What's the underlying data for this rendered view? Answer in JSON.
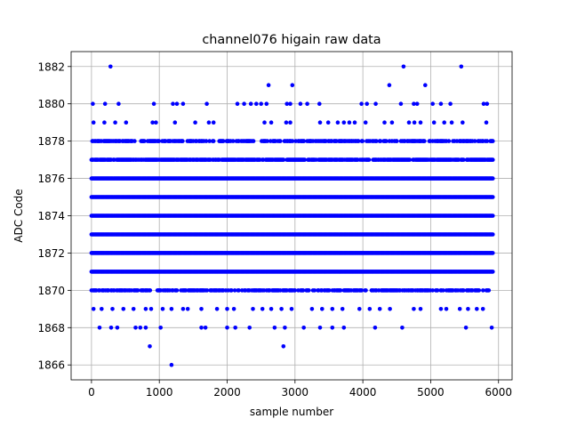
{
  "chart_data": {
    "type": "scatter",
    "title": "channel076 higain raw data",
    "xlabel": "sample number",
    "ylabel": "ADC Code",
    "xlim": [
      -300,
      6200
    ],
    "ylim": [
      1865.2,
      1882.8
    ],
    "x_ticks": [
      0,
      1000,
      2000,
      3000,
      4000,
      5000,
      6000
    ],
    "y_ticks": [
      1866,
      1868,
      1870,
      1872,
      1874,
      1876,
      1878,
      1880,
      1882
    ],
    "grid": true,
    "marker_color": "#0000ff",
    "series": [
      {
        "dense_levels": [
          1871,
          1872,
          1873,
          1874,
          1875,
          1876
        ],
        "dense_x_range": [
          0,
          5920
        ],
        "semi_dense_levels": [
          1870,
          1877,
          1878
        ],
        "sparse_points": [
          {
            "x": 280,
            "y": 1882
          },
          {
            "x": 4600,
            "y": 1882
          },
          {
            "x": 5450,
            "y": 1882
          },
          {
            "x": 2610,
            "y": 1881
          },
          {
            "x": 2960,
            "y": 1881
          },
          {
            "x": 4390,
            "y": 1881
          },
          {
            "x": 4920,
            "y": 1881
          },
          {
            "x": 20,
            "y": 1880
          },
          {
            "x": 200,
            "y": 1880
          },
          {
            "x": 400,
            "y": 1880
          },
          {
            "x": 920,
            "y": 1880
          },
          {
            "x": 1200,
            "y": 1880
          },
          {
            "x": 1260,
            "y": 1880
          },
          {
            "x": 1350,
            "y": 1880
          },
          {
            "x": 1700,
            "y": 1880
          },
          {
            "x": 2150,
            "y": 1880
          },
          {
            "x": 2250,
            "y": 1880
          },
          {
            "x": 2350,
            "y": 1880
          },
          {
            "x": 2430,
            "y": 1880
          },
          {
            "x": 2500,
            "y": 1880
          },
          {
            "x": 2580,
            "y": 1880
          },
          {
            "x": 2880,
            "y": 1880
          },
          {
            "x": 2930,
            "y": 1880
          },
          {
            "x": 3080,
            "y": 1880
          },
          {
            "x": 3180,
            "y": 1880
          },
          {
            "x": 3360,
            "y": 1880
          },
          {
            "x": 3980,
            "y": 1880
          },
          {
            "x": 4060,
            "y": 1880
          },
          {
            "x": 4190,
            "y": 1880
          },
          {
            "x": 4560,
            "y": 1880
          },
          {
            "x": 4750,
            "y": 1880
          },
          {
            "x": 4800,
            "y": 1880
          },
          {
            "x": 5030,
            "y": 1880
          },
          {
            "x": 5150,
            "y": 1880
          },
          {
            "x": 5290,
            "y": 1880
          },
          {
            "x": 5780,
            "y": 1880
          },
          {
            "x": 5830,
            "y": 1880
          },
          {
            "x": 30,
            "y": 1879
          },
          {
            "x": 190,
            "y": 1879
          },
          {
            "x": 350,
            "y": 1879
          },
          {
            "x": 510,
            "y": 1879
          },
          {
            "x": 900,
            "y": 1879
          },
          {
            "x": 950,
            "y": 1879
          },
          {
            "x": 1230,
            "y": 1879
          },
          {
            "x": 1530,
            "y": 1879
          },
          {
            "x": 1730,
            "y": 1879
          },
          {
            "x": 1800,
            "y": 1879
          },
          {
            "x": 2550,
            "y": 1879
          },
          {
            "x": 2650,
            "y": 1879
          },
          {
            "x": 2870,
            "y": 1879
          },
          {
            "x": 2930,
            "y": 1879
          },
          {
            "x": 3370,
            "y": 1879
          },
          {
            "x": 3490,
            "y": 1879
          },
          {
            "x": 3630,
            "y": 1879
          },
          {
            "x": 3720,
            "y": 1879
          },
          {
            "x": 3800,
            "y": 1879
          },
          {
            "x": 3880,
            "y": 1879
          },
          {
            "x": 4040,
            "y": 1879
          },
          {
            "x": 4320,
            "y": 1879
          },
          {
            "x": 4430,
            "y": 1879
          },
          {
            "x": 4680,
            "y": 1879
          },
          {
            "x": 4760,
            "y": 1879
          },
          {
            "x": 4850,
            "y": 1879
          },
          {
            "x": 5050,
            "y": 1879
          },
          {
            "x": 5200,
            "y": 1879
          },
          {
            "x": 5310,
            "y": 1879
          },
          {
            "x": 5470,
            "y": 1879
          },
          {
            "x": 5820,
            "y": 1879
          },
          {
            "x": 30,
            "y": 1869
          },
          {
            "x": 150,
            "y": 1869
          },
          {
            "x": 310,
            "y": 1869
          },
          {
            "x": 470,
            "y": 1869
          },
          {
            "x": 620,
            "y": 1869
          },
          {
            "x": 800,
            "y": 1869
          },
          {
            "x": 880,
            "y": 1869
          },
          {
            "x": 1050,
            "y": 1869
          },
          {
            "x": 1180,
            "y": 1869
          },
          {
            "x": 1350,
            "y": 1869
          },
          {
            "x": 1420,
            "y": 1869
          },
          {
            "x": 1620,
            "y": 1869
          },
          {
            "x": 1850,
            "y": 1869
          },
          {
            "x": 2000,
            "y": 1869
          },
          {
            "x": 2100,
            "y": 1869
          },
          {
            "x": 2380,
            "y": 1869
          },
          {
            "x": 2520,
            "y": 1869
          },
          {
            "x": 2650,
            "y": 1869
          },
          {
            "x": 2800,
            "y": 1869
          },
          {
            "x": 2950,
            "y": 1869
          },
          {
            "x": 3250,
            "y": 1869
          },
          {
            "x": 3400,
            "y": 1869
          },
          {
            "x": 3550,
            "y": 1869
          },
          {
            "x": 3700,
            "y": 1869
          },
          {
            "x": 3950,
            "y": 1869
          },
          {
            "x": 4100,
            "y": 1869
          },
          {
            "x": 4250,
            "y": 1869
          },
          {
            "x": 4400,
            "y": 1869
          },
          {
            "x": 4750,
            "y": 1869
          },
          {
            "x": 4850,
            "y": 1869
          },
          {
            "x": 5150,
            "y": 1869
          },
          {
            "x": 5230,
            "y": 1869
          },
          {
            "x": 5430,
            "y": 1869
          },
          {
            "x": 5550,
            "y": 1869
          },
          {
            "x": 5680,
            "y": 1869
          },
          {
            "x": 5770,
            "y": 1869
          },
          {
            "x": 120,
            "y": 1868
          },
          {
            "x": 290,
            "y": 1868
          },
          {
            "x": 380,
            "y": 1868
          },
          {
            "x": 650,
            "y": 1868
          },
          {
            "x": 720,
            "y": 1868
          },
          {
            "x": 800,
            "y": 1868
          },
          {
            "x": 1020,
            "y": 1868
          },
          {
            "x": 1620,
            "y": 1868
          },
          {
            "x": 1680,
            "y": 1868
          },
          {
            "x": 2000,
            "y": 1868
          },
          {
            "x": 2120,
            "y": 1868
          },
          {
            "x": 2330,
            "y": 1868
          },
          {
            "x": 2700,
            "y": 1868
          },
          {
            "x": 2850,
            "y": 1868
          },
          {
            "x": 3130,
            "y": 1868
          },
          {
            "x": 3370,
            "y": 1868
          },
          {
            "x": 3550,
            "y": 1868
          },
          {
            "x": 3720,
            "y": 1868
          },
          {
            "x": 4180,
            "y": 1868
          },
          {
            "x": 4580,
            "y": 1868
          },
          {
            "x": 5520,
            "y": 1868
          },
          {
            "x": 5900,
            "y": 1868
          },
          {
            "x": 860,
            "y": 1867
          },
          {
            "x": 2830,
            "y": 1867
          },
          {
            "x": 1180,
            "y": 1866
          }
        ]
      }
    ]
  }
}
